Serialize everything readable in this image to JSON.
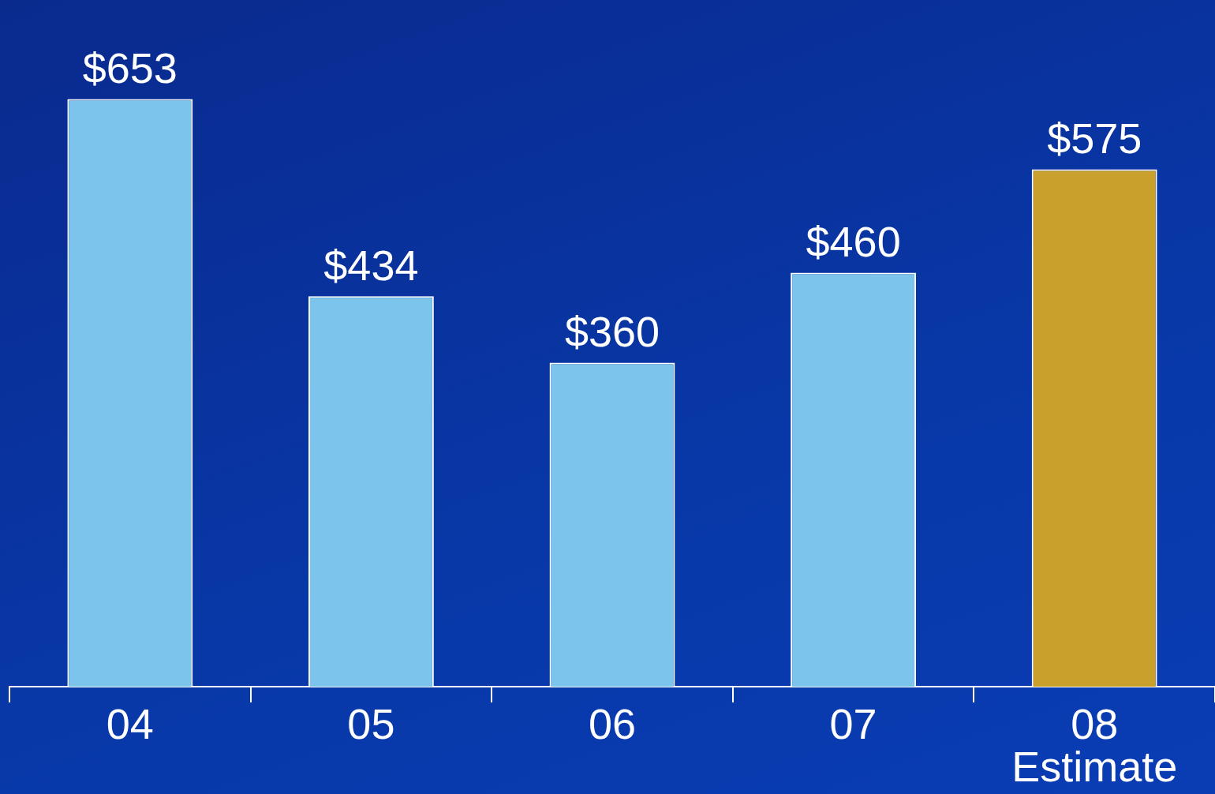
{
  "chart_data": {
    "type": "bar",
    "categories": [
      "04",
      "05",
      "06",
      "07",
      "08\nEstimate"
    ],
    "values": [
      653,
      434,
      360,
      460,
      575
    ],
    "value_labels": [
      "$653",
      "$434",
      "$360",
      "$460",
      "$575"
    ],
    "colors": [
      "#7cc4ec",
      "#7cc4ec",
      "#7cc4ec",
      "#7cc4ec",
      "#c9a02c"
    ],
    "grid": false,
    "legend": false
  }
}
